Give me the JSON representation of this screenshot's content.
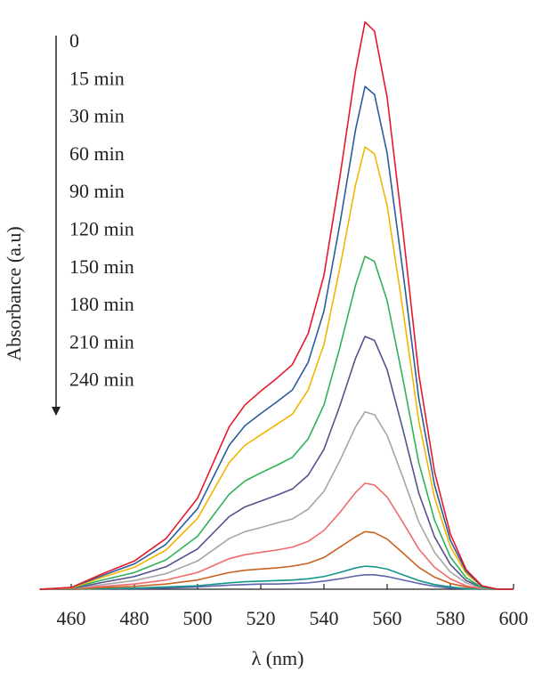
{
  "chart_data": {
    "type": "line",
    "x_label": "λ (nm)",
    "y_label": "Absorbance (a.u)",
    "x": [
      450,
      460,
      470,
      480,
      490,
      500,
      510,
      515,
      520,
      525,
      530,
      535,
      540,
      545,
      550,
      553,
      556,
      560,
      565,
      570,
      575,
      580,
      585,
      590,
      595,
      600
    ],
    "xlim": [
      450,
      600
    ],
    "xticks": [
      460,
      480,
      500,
      520,
      540,
      560,
      580,
      600
    ],
    "ylim": [
      0,
      1
    ],
    "series": [
      {
        "name": "0",
        "color": "#e8182a",
        "values": [
          0,
          0.003,
          0.027,
          0.049,
          0.088,
          0.158,
          0.282,
          0.32,
          0.344,
          0.366,
          0.39,
          0.444,
          0.545,
          0.714,
          0.9,
          0.985,
          0.969,
          0.854,
          0.622,
          0.374,
          0.204,
          0.096,
          0.034,
          0.006,
          0,
          0
        ]
      },
      {
        "name": "15 min",
        "color": "#2a5d9a",
        "values": [
          0,
          0.003,
          0.024,
          0.044,
          0.078,
          0.14,
          0.25,
          0.284,
          0.305,
          0.325,
          0.346,
          0.394,
          0.483,
          0.633,
          0.798,
          0.873,
          0.859,
          0.757,
          0.551,
          0.332,
          0.181,
          0.085,
          0.031,
          0.005,
          0,
          0
        ]
      },
      {
        "name": "30 min",
        "color": "#f2b600",
        "values": [
          0,
          0.002,
          0.021,
          0.038,
          0.068,
          0.123,
          0.22,
          0.25,
          0.268,
          0.286,
          0.304,
          0.346,
          0.425,
          0.557,
          0.702,
          0.768,
          0.756,
          0.666,
          0.485,
          0.292,
          0.159,
          0.074,
          0.027,
          0.005,
          0,
          0
        ]
      },
      {
        "name": "60 min",
        "color": "#2fb15a",
        "values": [
          0,
          0.002,
          0.016,
          0.029,
          0.051,
          0.092,
          0.165,
          0.188,
          0.202,
          0.215,
          0.229,
          0.261,
          0.32,
          0.419,
          0.528,
          0.578,
          0.569,
          0.501,
          0.365,
          0.22,
          0.12,
          0.056,
          0.02,
          0.003,
          0,
          0
        ]
      },
      {
        "name": "90 min",
        "color": "#55508f",
        "values": [
          0,
          0.001,
          0.012,
          0.022,
          0.039,
          0.07,
          0.126,
          0.143,
          0.153,
          0.163,
          0.174,
          0.198,
          0.243,
          0.318,
          0.401,
          0.439,
          0.432,
          0.381,
          0.277,
          0.167,
          0.091,
          0.043,
          0.015,
          0.003,
          0,
          0
        ]
      },
      {
        "name": "120 min",
        "color": "#a6a6a6",
        "values": [
          0,
          0.001,
          0.008,
          0.015,
          0.027,
          0.049,
          0.088,
          0.1,
          0.107,
          0.115,
          0.122,
          0.139,
          0.17,
          0.223,
          0.282,
          0.308,
          0.303,
          0.267,
          0.194,
          0.117,
          0.064,
          0.03,
          0.011,
          0.002,
          0,
          0
        ]
      },
      {
        "name": "150 min",
        "color": "#f06a6e",
        "values": [
          0,
          0.001,
          0.005,
          0.009,
          0.016,
          0.029,
          0.053,
          0.06,
          0.064,
          0.068,
          0.073,
          0.083,
          0.102,
          0.133,
          0.168,
          0.184,
          0.181,
          0.16,
          0.116,
          0.07,
          0.038,
          0.018,
          0.006,
          0.001,
          0,
          0
        ]
      },
      {
        "name": "180 min",
        "color": "#c8621f",
        "values": [
          0,
          0,
          0.003,
          0.005,
          0.009,
          0.016,
          0.029,
          0.033,
          0.035,
          0.037,
          0.04,
          0.045,
          0.055,
          0.073,
          0.091,
          0.1,
          0.098,
          0.087,
          0.063,
          0.038,
          0.021,
          0.01,
          0.004,
          0.001,
          0,
          0
        ]
      },
      {
        "name": "210 min",
        "color": "#12958a",
        "values": [
          0,
          0,
          0.001,
          0.002,
          0.004,
          0.006,
          0.011,
          0.013,
          0.014,
          0.015,
          0.016,
          0.018,
          0.022,
          0.029,
          0.037,
          0.04,
          0.039,
          0.035,
          0.025,
          0.015,
          0.008,
          0.004,
          0.001,
          0,
          0,
          0
        ]
      },
      {
        "name": "240 min",
        "color": "#5e63ad",
        "values": [
          0,
          0,
          0.001,
          0.001,
          0.002,
          0.004,
          0.007,
          0.008,
          0.009,
          0.009,
          0.01,
          0.011,
          0.014,
          0.018,
          0.023,
          0.025,
          0.025,
          0.022,
          0.016,
          0.01,
          0.005,
          0.002,
          0.001,
          0,
          0,
          0
        ]
      }
    ]
  }
}
